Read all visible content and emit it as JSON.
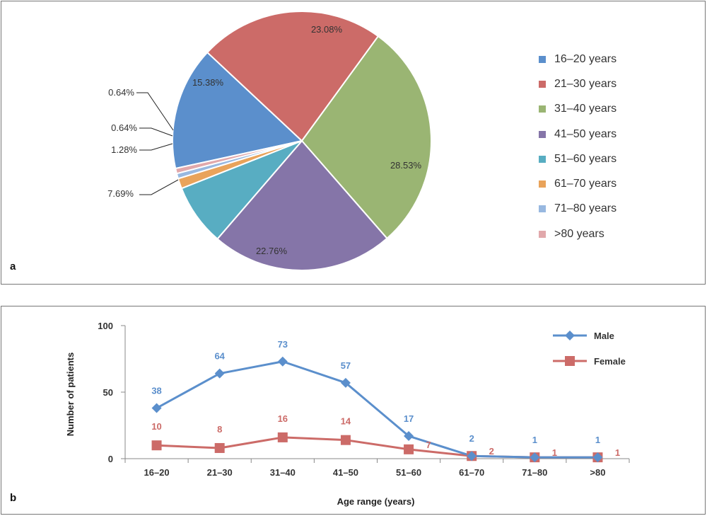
{
  "chart_data": [
    {
      "type": "pie",
      "panel_label": "a",
      "categories": [
        "16–20 years",
        "21–30 years",
        "31–40 years",
        "41–50 years",
        "51–60 years",
        "61–70 years",
        "71–80 years",
        ">80 years"
      ],
      "values": [
        15.38,
        23.08,
        28.53,
        22.76,
        7.69,
        1.28,
        0.64,
        0.64
      ],
      "value_labels": [
        "15.38%",
        "23.08%",
        "28.53%",
        "22.76%",
        "7.69%",
        "1.28%",
        "0.64%",
        "0.64%"
      ],
      "colors": [
        "#5b8fcc",
        "#cc6b68",
        "#9ab573",
        "#8575a8",
        "#58adc2",
        "#e9a35a",
        "#98b8e0",
        "#e1a8ab"
      ],
      "legend_position": "right"
    },
    {
      "type": "line",
      "panel_label": "b",
      "categories": [
        "16–20",
        "21–30",
        "31–40",
        "41–50",
        "51–60",
        "61–70",
        "71–80",
        ">80"
      ],
      "series": [
        {
          "name": "Male",
          "values": [
            38,
            64,
            73,
            57,
            17,
            2,
            1,
            1
          ],
          "color": "#5b8fcc",
          "marker": "diamond"
        },
        {
          "name": "Female",
          "values": [
            10,
            8,
            16,
            14,
            7,
            2,
            1,
            1
          ],
          "color": "#cc6b68",
          "marker": "square"
        }
      ],
      "xlabel": "Age range (years)",
      "ylabel": "Number of patients",
      "ylim": [
        0,
        100
      ],
      "yticks": [
        "0",
        "50",
        "100"
      ],
      "legend_position": "top-right"
    }
  ]
}
